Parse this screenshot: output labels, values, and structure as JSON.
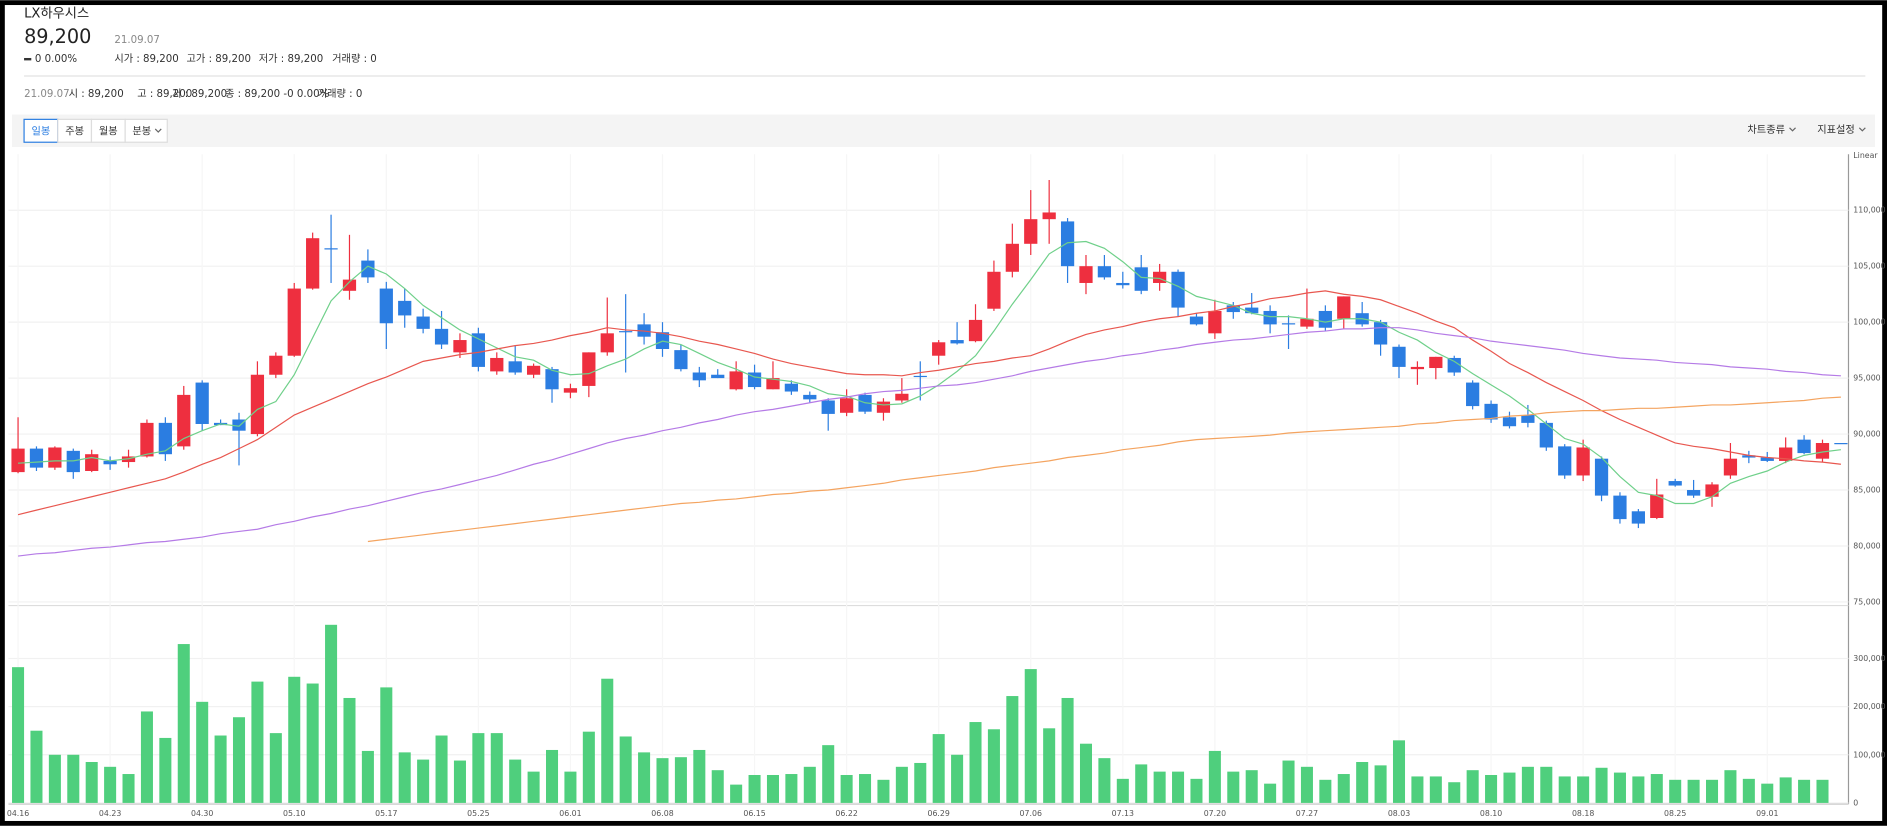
{
  "header": {
    "name": "LX하우시스",
    "price": "89,200",
    "date": "21.09.07",
    "change": "0 0.00%",
    "stats": [
      "시가 : 89,200",
      "고가 : 89,200",
      "저가 : 89,200",
      "거래량 : 0"
    ]
  },
  "summary": {
    "date": "21.09.07",
    "items": [
      "시 : 89,200",
      "고 : 89,200",
      "저 : 89,200",
      "종 : 89,200 -0 0.00%",
      "거래량 : 0"
    ]
  },
  "toolbar": {
    "periods": [
      "일봉",
      "주봉",
      "월봉",
      "분봉"
    ],
    "options": [
      "차트종류",
      "지표설정"
    ]
  },
  "chart_data": {
    "type": "candlestick",
    "scale_label": "Linear",
    "categories": [
      "04.16",
      null,
      null,
      null,
      null,
      "04.23",
      null,
      null,
      null,
      null,
      "04.30",
      null,
      null,
      null,
      null,
      "05.10",
      null,
      null,
      null,
      null,
      "05.17",
      null,
      null,
      null,
      null,
      "05.25",
      null,
      null,
      null,
      null,
      "06.01",
      null,
      null,
      null,
      null,
      "06.08",
      null,
      null,
      null,
      null,
      "06.15",
      null,
      null,
      null,
      null,
      "06.22",
      null,
      null,
      null,
      null,
      "06.29",
      null,
      null,
      null,
      null,
      "07.06",
      null,
      null,
      null,
      null,
      "07.13",
      null,
      null,
      null,
      null,
      "07.20",
      null,
      null,
      null,
      null,
      "07.27",
      null,
      null,
      null,
      null,
      "08.03",
      null,
      null,
      null,
      null,
      "08.10",
      null,
      null,
      null,
      null,
      "08.18",
      null,
      null,
      null,
      null,
      "08.25",
      null,
      null,
      null,
      null,
      "09.01",
      null,
      null,
      null,
      null
    ],
    "open": [
      86600,
      88700,
      87000,
      88500,
      86700,
      87600,
      87500,
      88000,
      91000,
      88900,
      94600,
      91000,
      91300,
      90000,
      95300,
      97000,
      103000,
      106600,
      102800,
      105500,
      103000,
      101900,
      100500,
      99400,
      97300,
      99000,
      95600,
      96500,
      95300,
      95800,
      93700,
      94300,
      97300,
      99200,
      99800,
      99100,
      97500,
      95500,
      95300,
      94000,
      95500,
      94000,
      94500,
      93500,
      93000,
      91900,
      93500,
      91900,
      93000,
      95200,
      97000,
      98400,
      98300,
      101200,
      104500,
      107000,
      109200,
      109000,
      103500,
      105000,
      103500,
      104900,
      103500,
      104500,
      100500,
      99000,
      101500,
      101300,
      101000,
      99900,
      99600,
      101000,
      100300,
      100800,
      100000,
      97800,
      95800,
      95900,
      96800,
      94600,
      92700,
      91500,
      91700,
      91000,
      88900,
      86300,
      87800,
      84500,
      83100,
      82500,
      85800,
      85000,
      84400,
      86300,
      88100,
      87900,
      87600,
      89500,
      87800,
      89200
    ],
    "high": [
      91500,
      88900,
      88900,
      88700,
      88600,
      88000,
      88600,
      91300,
      91500,
      94300,
      94800,
      91300,
      91900,
      96500,
      97300,
      103500,
      108000,
      109600,
      107800,
      106500,
      103600,
      103000,
      101200,
      101000,
      99000,
      99500,
      97300,
      97900,
      96300,
      96000,
      94500,
      97300,
      102200,
      102500,
      100800,
      100000,
      98000,
      96000,
      95800,
      96500,
      96200,
      96500,
      94800,
      93800,
      93200,
      94000,
      93700,
      93200,
      95000,
      96500,
      98400,
      100000,
      101600,
      105500,
      108800,
      111800,
      112700,
      109300,
      106000,
      106000,
      104500,
      106000,
      105200,
      104700,
      100800,
      102000,
      101800,
      102600,
      101500,
      100600,
      103000,
      101500,
      102300,
      101800,
      100200,
      98000,
      96500,
      96900,
      97000,
      94800,
      93000,
      92000,
      92600,
      91200,
      89100,
      89500,
      88000,
      84800,
      83300,
      86000,
      86000,
      85900,
      85700,
      89200,
      88500,
      88400,
      89700,
      89900,
      89500,
      89200
    ],
    "low": [
      86500,
      86700,
      86800,
      86000,
      86600,
      86800,
      87000,
      87900,
      87600,
      88600,
      90300,
      90800,
      87200,
      89800,
      95000,
      96900,
      102900,
      103500,
      102000,
      103500,
      97600,
      99500,
      99000,
      97600,
      96800,
      95600,
      95300,
      95300,
      95000,
      92800,
      93200,
      93300,
      97000,
      95500,
      98000,
      96900,
      95600,
      94200,
      95000,
      93900,
      94000,
      94000,
      93500,
      92800,
      90300,
      91600,
      91800,
      91200,
      92800,
      93000,
      96200,
      98000,
      98200,
      101000,
      104000,
      106000,
      107000,
      103500,
      102500,
      103800,
      103000,
      102500,
      102800,
      100500,
      99700,
      98500,
      100300,
      100700,
      99000,
      97600,
      99400,
      99200,
      99400,
      99600,
      97000,
      95000,
      94400,
      94900,
      95200,
      92200,
      91000,
      90500,
      90600,
      88500,
      86000,
      85800,
      84000,
      82000,
      81600,
      82400,
      85300,
      84300,
      83500,
      86000,
      87400,
      87500,
      87400,
      88200,
      87500,
      89200
    ],
    "close": [
      88700,
      87000,
      88800,
      86600,
      88200,
      87300,
      88000,
      91000,
      88200,
      93500,
      90900,
      90800,
      90300,
      95300,
      97000,
      103000,
      107500,
      106500,
      103800,
      104000,
      99900,
      100600,
      99400,
      98000,
      98400,
      96000,
      96800,
      95500,
      96100,
      94000,
      94100,
      97300,
      99000,
      99100,
      98700,
      97600,
      95800,
      94800,
      95000,
      95600,
      94200,
      95000,
      93800,
      93100,
      91800,
      93200,
      92000,
      92900,
      93600,
      95100,
      98200,
      98100,
      100200,
      104500,
      107000,
      109200,
      109800,
      105000,
      105000,
      104000,
      103300,
      102800,
      104500,
      101300,
      99800,
      101000,
      100900,
      100800,
      99800,
      99800,
      100300,
      99500,
      102300,
      99800,
      98000,
      96000,
      96000,
      96900,
      95500,
      92500,
      91300,
      90700,
      91000,
      88800,
      86300,
      88800,
      84500,
      82400,
      82000,
      84600,
      85400,
      84500,
      85500,
      87800,
      87900,
      87600,
      88800,
      88300,
      89200,
      89200
    ],
    "up_color": "#ee2f3f",
    "down_color": "#2b7de1",
    "lines": [
      {
        "color": "#6fd08a",
        "values": [
          87400,
          87500,
          87600,
          87600,
          87900,
          87600,
          87800,
          88200,
          88500,
          89600,
          90300,
          90900,
          90700,
          92200,
          92900,
          95300,
          98600,
          101900,
          103600,
          105000,
          104300,
          103000,
          101500,
          100400,
          99300,
          98500,
          97700,
          96900,
          96600,
          95700,
          95300,
          95400,
          96100,
          96700,
          97600,
          98300,
          98000,
          97200,
          96400,
          95800,
          95100,
          94900,
          94700,
          94300,
          93600,
          93400,
          92800,
          92600,
          92700,
          93400,
          94400,
          95600,
          97000,
          99200,
          101600,
          103800,
          106100,
          107100,
          107200,
          106600,
          105400,
          104000,
          103900,
          103200,
          102300,
          101900,
          101500,
          100800,
          100500,
          100500,
          100300,
          100000,
          100300,
          100300,
          100000,
          99100,
          98400,
          97300,
          96500,
          95400,
          94400,
          93400,
          92200,
          90900,
          89600,
          89100,
          87900,
          86200,
          84800,
          84500,
          83800,
          83800,
          84400,
          85600,
          86200,
          86700,
          87500,
          88100,
          88400,
          88600
        ]
      },
      {
        "color": "#e8574f",
        "values": [
          82800,
          83200,
          83600,
          84000,
          84400,
          84800,
          85200,
          85600,
          86000,
          86600,
          87300,
          87900,
          88700,
          89500,
          90600,
          91700,
          92400,
          93100,
          93800,
          94500,
          95100,
          95800,
          96500,
          96800,
          97100,
          97300,
          97600,
          97900,
          98100,
          98400,
          98800,
          99100,
          99500,
          99300,
          99200,
          99000,
          98700,
          98300,
          98000,
          97600,
          97200,
          96700,
          96300,
          96000,
          95700,
          95400,
          95300,
          95300,
          95200,
          95500,
          95700,
          96000,
          96300,
          96500,
          96800,
          97000,
          97600,
          98300,
          98900,
          99300,
          99600,
          100000,
          100300,
          100500,
          100800,
          101000,
          101400,
          101700,
          102100,
          102300,
          102600,
          102800,
          102500,
          102300,
          102000,
          101400,
          100800,
          100100,
          99500,
          98400,
          97400,
          96300,
          95500,
          94600,
          93800,
          93000,
          92100,
          91300,
          90600,
          89900,
          89200,
          88900,
          88700,
          88400,
          88100,
          87900,
          87800,
          87600,
          87500,
          87300
        ]
      },
      {
        "color": "#b57be6",
        "values": [
          79100,
          79300,
          79400,
          79600,
          79800,
          79900,
          80100,
          80300,
          80400,
          80600,
          80800,
          81100,
          81300,
          81500,
          81900,
          82200,
          82600,
          82900,
          83300,
          83600,
          84000,
          84400,
          84800,
          85100,
          85500,
          85900,
          86300,
          86800,
          87300,
          87700,
          88200,
          88700,
          89200,
          89600,
          89900,
          90300,
          90600,
          91000,
          91300,
          91700,
          92000,
          92200,
          92500,
          92800,
          93100,
          93300,
          93600,
          93800,
          93900,
          94100,
          94300,
          94400,
          94600,
          94900,
          95200,
          95600,
          95900,
          96200,
          96500,
          96700,
          97000,
          97200,
          97500,
          97700,
          98000,
          98200,
          98400,
          98500,
          98700,
          98900,
          99100,
          99200,
          99400,
          99400,
          99500,
          99500,
          99300,
          99000,
          98800,
          98600,
          98300,
          98100,
          97900,
          97700,
          97500,
          97200,
          97000,
          96800,
          96700,
          96600,
          96400,
          96300,
          96200,
          96000,
          95900,
          95800,
          95600,
          95500,
          95300,
          95200
        ]
      },
      {
        "color": "#f4a460",
        "values": [
          null,
          null,
          null,
          null,
          null,
          null,
          null,
          null,
          null,
          null,
          null,
          null,
          null,
          null,
          null,
          null,
          null,
          null,
          null,
          80400,
          80600,
          80800,
          81000,
          81200,
          81400,
          81600,
          81800,
          82000,
          82200,
          82400,
          82600,
          82800,
          83000,
          83200,
          83400,
          83600,
          83800,
          83900,
          84100,
          84200,
          84400,
          84600,
          84700,
          84900,
          85000,
          85200,
          85400,
          85600,
          85900,
          86100,
          86300,
          86500,
          86700,
          87000,
          87200,
          87400,
          87600,
          87900,
          88100,
          88300,
          88600,
          88800,
          89000,
          89300,
          89500,
          89600,
          89700,
          89800,
          89900,
          90100,
          90200,
          90300,
          90400,
          90500,
          90600,
          90700,
          90900,
          91000,
          91200,
          91300,
          91400,
          91600,
          91700,
          91900,
          92000,
          92100,
          92100,
          92200,
          92300,
          92300,
          92400,
          92500,
          92600,
          92600,
          92700,
          92800,
          92900,
          93000,
          93200,
          93300
        ]
      }
    ],
    "ylim": [
      75000,
      115000
    ],
    "yticks": [
      {
        "value": 75000,
        "label": "75,000"
      },
      {
        "value": 80000,
        "label": "80,000"
      },
      {
        "value": 85000,
        "label": "85,000"
      },
      {
        "value": 90000,
        "label": "90,000"
      },
      {
        "value": 95000,
        "label": "95,000"
      },
      {
        "value": 100000,
        "label": "100,000"
      },
      {
        "value": 105000,
        "label": "105,000"
      },
      {
        "value": 110000,
        "label": "110,000"
      }
    ],
    "grid": true,
    "volume": {
      "color": "#4fcf7d",
      "values": [
        282000,
        150000,
        100000,
        100000,
        85000,
        75000,
        60000,
        190000,
        135000,
        330000,
        210000,
        140000,
        178000,
        252000,
        145000,
        262000,
        248000,
        370000,
        218000,
        108000,
        240000,
        105000,
        90000,
        140000,
        88000,
        145000,
        145000,
        90000,
        65000,
        110000,
        65000,
        148000,
        258000,
        138000,
        105000,
        93000,
        95000,
        110000,
        68000,
        38000,
        58000,
        58000,
        60000,
        75000,
        120000,
        58000,
        60000,
        48000,
        75000,
        83000,
        143000,
        100000,
        168000,
        153000,
        222000,
        278000,
        155000,
        218000,
        123000,
        93000,
        50000,
        80000,
        65000,
        65000,
        50000,
        108000,
        65000,
        68000,
        40000,
        88000,
        75000,
        48000,
        60000,
        85000,
        78000,
        130000,
        55000,
        55000,
        43000,
        68000,
        58000,
        63000,
        75000,
        75000,
        55000,
        55000,
        73000,
        63000,
        55000,
        60000,
        48000,
        48000,
        48000,
        68000,
        50000,
        40000,
        53000,
        48000,
        48000,
        0
      ],
      "ylim": [
        0,
        405000
      ],
      "yticks": [
        0,
        {
          "value": 100000,
          "label": "100,000"
        },
        {
          "value": 200000,
          "label": "200,000"
        },
        {
          "value": 300000,
          "label": "300,000"
        }
      ]
    }
  }
}
